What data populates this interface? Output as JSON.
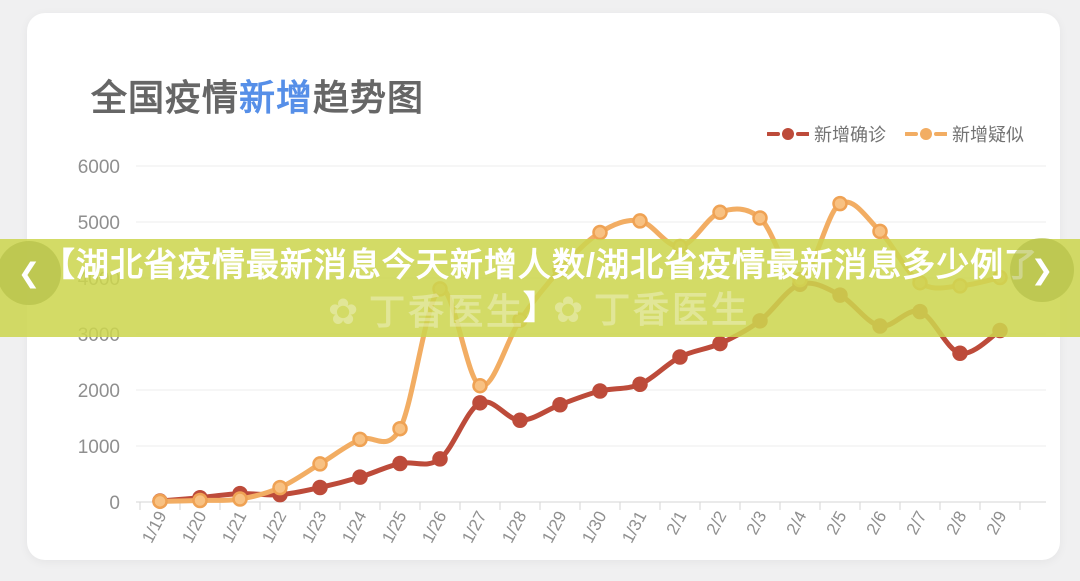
{
  "title": {
    "prefix": "全国疫情",
    "highlight": "新增",
    "suffix": "趋势图",
    "highlight_color": "#568fe8",
    "base_color": "#666666"
  },
  "banner": {
    "lines": [
      "【湖北省疫情最新消息今天新增人数/湖北省疫情最新消息多少例了",
      "】"
    ],
    "bg_color": "rgba(205,214,79,0.87)",
    "text_color": "#ffffff",
    "prev_arrow": "❮",
    "next_arrow": "❯",
    "watermark_flower": "✿",
    "watermark_text": "丁香医生"
  },
  "chart_data": {
    "type": "line",
    "title": "全国疫情新增趋势图",
    "x": [
      "1/19",
      "1/20",
      "1/21",
      "1/22",
      "1/23",
      "1/24",
      "1/25",
      "1/26",
      "1/27",
      "1/28",
      "1/29",
      "1/30",
      "1/31",
      "2/1",
      "2/2",
      "2/3",
      "2/4",
      "2/5",
      "2/6",
      "2/7",
      "2/8",
      "2/9"
    ],
    "series": [
      {
        "name": "新增确诊",
        "color": "#bd4b3a",
        "dot_fill": "#bd4b3a",
        "dot_stroke": "#bd4b3a",
        "values": [
          17,
          77,
          149,
          131,
          259,
          444,
          688,
          769,
          1771,
          1459,
          1737,
          1982,
          2102,
          2590,
          2829,
          3235,
          3887,
          3694,
          3143,
          3399,
          2656,
          3062
        ]
      },
      {
        "name": "新增疑似",
        "color": "#f2ad63",
        "dot_fill": "#f8c182",
        "dot_stroke": "#efa254",
        "values": [
          12,
          27,
          53,
          257,
          680,
          1118,
          1309,
          3806,
          2077,
          3248,
          4148,
          4812,
          5019,
          4562,
          5173,
          5072,
          3971,
          5328,
          4833,
          3916,
          3859,
          4008
        ]
      }
    ],
    "ylim": [
      0,
      6000
    ],
    "yticks": [
      0,
      1000,
      2000,
      3000,
      4000,
      5000,
      6000
    ],
    "grid": true,
    "smooth": true,
    "legend_position": "top-right",
    "style": {
      "grid_color": "#ededed",
      "axis_color": "#d6d6d6",
      "tick_label_color": "#8f8f8f"
    }
  }
}
